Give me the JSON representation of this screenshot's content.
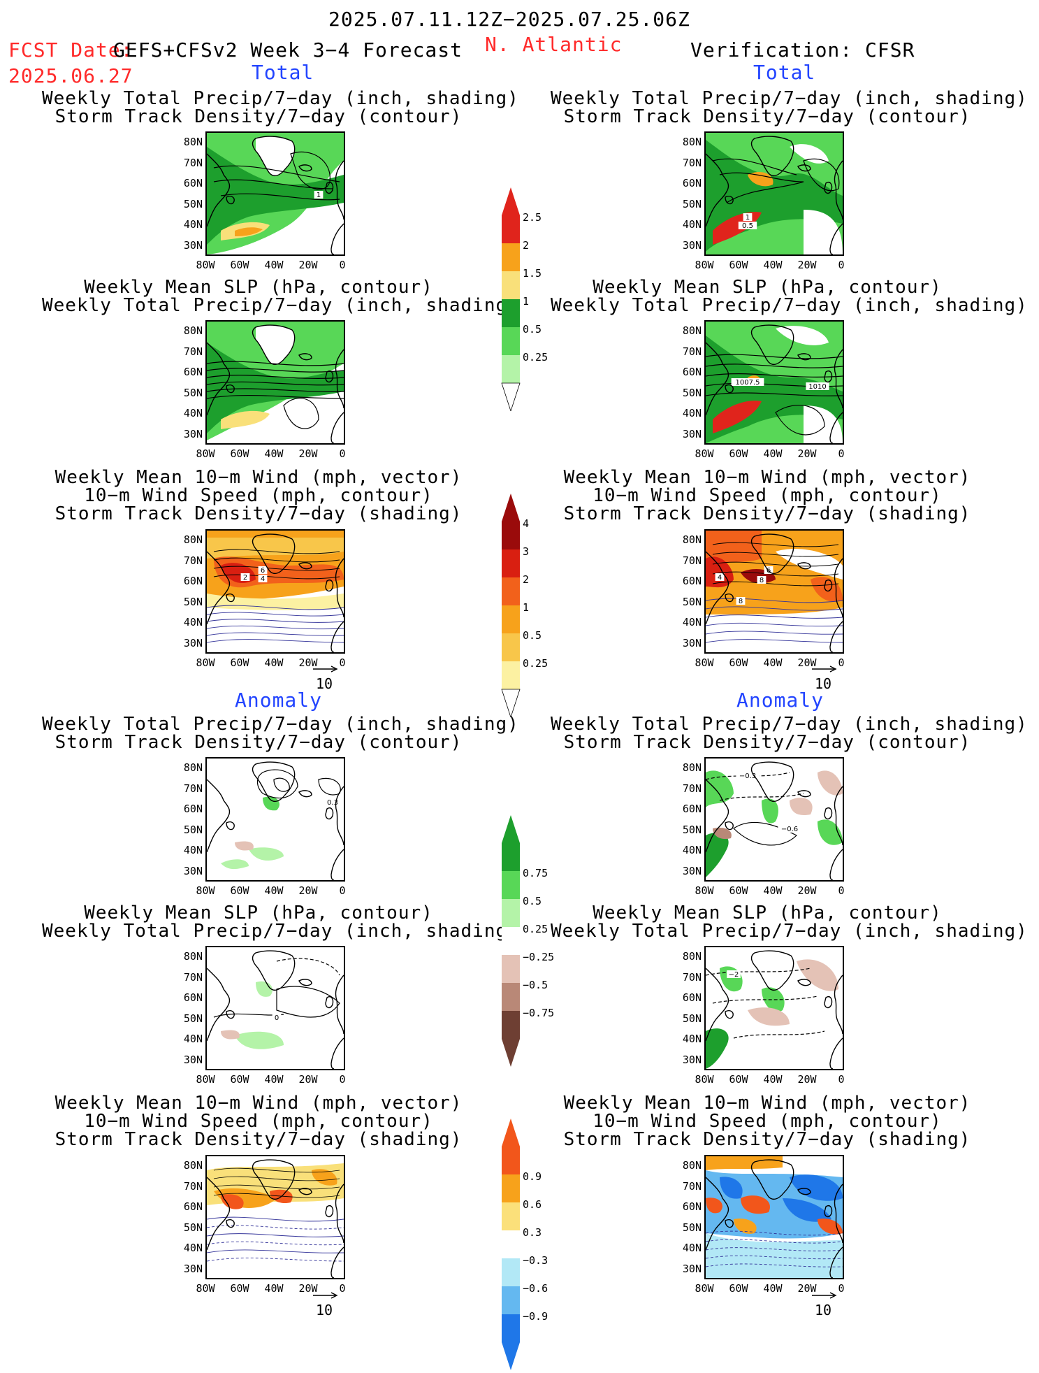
{
  "header": {
    "period": "2025.07.11.12Z−2025.07.25.06Z",
    "fcst_prefix": "FCST Date:",
    "fcst_model": "GEFS+CFSv2 Week 3−4 Forecast",
    "fcst_date": "2025.06.27",
    "region": "N. Atlantic",
    "verification": "Verification: CFSR"
  },
  "sections": {
    "total": "Total",
    "anomaly": "Anomaly"
  },
  "titles": {
    "precip_storm": [
      "Weekly Total Precip/7−day (inch, shading)",
      "Storm Track Density/7−day (contour)"
    ],
    "slp_precip": [
      "Weekly Mean SLP (hPa, contour)",
      "Weekly Total Precip/7−day (inch, shading)"
    ],
    "wind_storm": [
      "Weekly Mean 10−m Wind (mph, vector)",
      "10−m Wind Speed (mph, contour)",
      "Storm Track Density/7−day (shading)"
    ]
  },
  "axes": {
    "lat_ticks": [
      "80N",
      "70N",
      "60N",
      "50N",
      "40N",
      "30N"
    ],
    "lon_ticks": [
      "80W",
      "60W",
      "40W",
      "20W",
      "0"
    ]
  },
  "vector_ref": "10",
  "colorbars": {
    "precip_total": {
      "labels": [
        "2.5",
        "2",
        "1.5",
        "1",
        "0.5",
        "0.25"
      ],
      "colors": [
        "#e0241c",
        "#f7a21b",
        "#f9e07a",
        "#1d9f2d",
        "#58d757",
        "#b4f3a8"
      ]
    },
    "storm_total": {
      "labels": [
        "4",
        "3",
        "2",
        "1",
        "0.5",
        "0.25"
      ],
      "colors": [
        "#9a0b0b",
        "#d91f11",
        "#f2611b",
        "#f7a21b",
        "#f8c64a",
        "#fcf1a2"
      ]
    },
    "precip_anom": {
      "labels": [
        "0.75",
        "0.5",
        "0.25",
        "−0.25",
        "−0.5",
        "−0.75"
      ],
      "colors_pos": [
        "#1d9f2d",
        "#58d757",
        "#b4f3a8"
      ],
      "colors_neg": [
        "#e4c2b6",
        "#b98877",
        "#6e3f33"
      ]
    },
    "storm_anom": {
      "labels": [
        "0.9",
        "0.6",
        "0.3",
        "−0.3",
        "−0.6",
        "−0.9"
      ],
      "colors_pos": [
        "#f2561b",
        "#f7a21b",
        "#fbe07a"
      ],
      "colors_neg": [
        "#b2e8f6",
        "#64b8f0",
        "#1f77e8"
      ]
    }
  },
  "contour_labels": {
    "fc_precip_total": "1",
    "ver_precip_total": [
      "1",
      "0.5"
    ],
    "ver_slp_total": [
      "1007.5",
      "1010"
    ],
    "fc_wind_total": [
      "2",
      "6",
      "4"
    ],
    "ver_wind_total": [
      "4",
      "6",
      "8",
      "8"
    ],
    "fc_precip_anom": "0.3",
    "ver_precip_anom": [
      "−0.3",
      "−0.6"
    ],
    "fc_slp_anom": "0",
    "ver_slp_anom": "−2"
  }
}
